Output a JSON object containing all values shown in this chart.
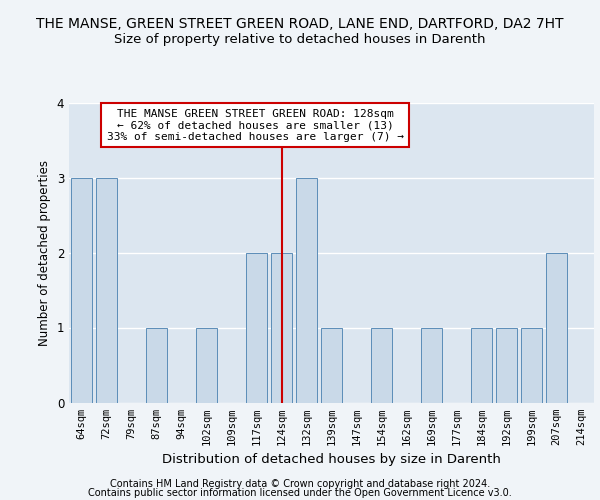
{
  "title": "THE MANSE, GREEN STREET GREEN ROAD, LANE END, DARTFORD, DA2 7HT",
  "subtitle": "Size of property relative to detached houses in Darenth",
  "xlabel": "Distribution of detached houses by size in Darenth",
  "ylabel": "Number of detached properties",
  "categories": [
    "64sqm",
    "72sqm",
    "79sqm",
    "87sqm",
    "94sqm",
    "102sqm",
    "109sqm",
    "117sqm",
    "124sqm",
    "132sqm",
    "139sqm",
    "147sqm",
    "154sqm",
    "162sqm",
    "169sqm",
    "177sqm",
    "184sqm",
    "192sqm",
    "199sqm",
    "207sqm",
    "214sqm"
  ],
  "values": [
    3,
    3,
    0,
    1,
    0,
    1,
    0,
    2,
    2,
    3,
    1,
    0,
    1,
    0,
    1,
    0,
    1,
    1,
    1,
    2,
    0
  ],
  "highlight_index": 8,
  "bar_color": "#c9d9e8",
  "bar_edge_color": "#5b8db8",
  "highlight_line_color": "#cc0000",
  "ylim": [
    0,
    4
  ],
  "yticks": [
    0,
    1,
    2,
    3,
    4
  ],
  "annotation_text": "THE MANSE GREEN STREET GREEN ROAD: 128sqm\n← 62% of detached houses are smaller (13)\n33% of semi-detached houses are larger (7) →",
  "annotation_box_color": "#ffffff",
  "annotation_box_edge": "#cc0000",
  "footer_line1": "Contains HM Land Registry data © Crown copyright and database right 2024.",
  "footer_line2": "Contains public sector information licensed under the Open Government Licence v3.0.",
  "background_color": "#dce6f0",
  "grid_color": "#ffffff",
  "fig_background": "#f0f4f8",
  "title_fontsize": 10,
  "subtitle_fontsize": 9.5,
  "axis_label_fontsize": 8.5,
  "tick_fontsize": 7.5,
  "annotation_fontsize": 8,
  "footer_fontsize": 7
}
